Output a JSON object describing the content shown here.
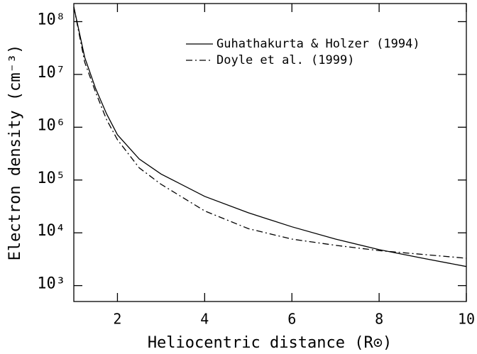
{
  "chart_data": {
    "type": "line",
    "x_label": "Heliocentric distance (R⊙)",
    "y_label": "Electron density (cm⁻³)",
    "x": [
      1,
      1.25,
      1.5,
      1.75,
      2,
      2.5,
      3,
      4,
      5,
      6,
      7,
      8,
      9,
      10
    ],
    "series": [
      {
        "name": "Guhathakurta & Holzer (1994)",
        "color": "#000000",
        "dash": "solid",
        "values": [
          190000000,
          21000000,
          5400000,
          1800000,
          720000,
          250000,
          130000,
          49000,
          24000,
          13000,
          7600,
          4800,
          3300,
          2300
        ]
      },
      {
        "name": "Doyle et al. (1999)",
        "color": "#000000",
        "dash": "dash-dot",
        "values": [
          190000000,
          17000000,
          4600000,
          1400000,
          580000,
          170000,
          83000,
          26000,
          12000,
          7600,
          5800,
          4600,
          3900,
          3300
        ]
      }
    ],
    "xlim": [
      1,
      10
    ],
    "xticks": [
      2,
      4,
      6,
      8,
      10
    ],
    "ylim": [
      500,
      220000000
    ],
    "log_y": true,
    "yticks": [
      {
        "value": 1000,
        "label": "10³"
      },
      {
        "value": 10000,
        "label": "10⁴"
      },
      {
        "value": 100000,
        "label": "10⁵"
      },
      {
        "value": 1000000,
        "label": "10⁶"
      },
      {
        "value": 10000000,
        "label": "10⁷"
      },
      {
        "value": 100000000,
        "label": "10⁸"
      }
    ],
    "grid": false,
    "legend": "upper right"
  }
}
